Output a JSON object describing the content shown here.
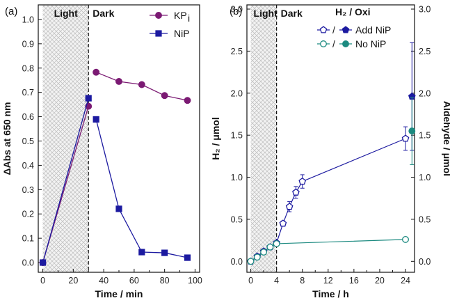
{
  "chart_data": [
    {
      "type": "line",
      "panel_label": "(a)",
      "xlabel": "Time / min",
      "ylabel": "ΔAbs at 650 nm",
      "xlim": [
        -3,
        103
      ],
      "ylim": [
        -0.04,
        1.06
      ],
      "xticks": [
        0,
        20,
        40,
        60,
        80,
        100
      ],
      "yticks": [
        0.0,
        0.1,
        0.2,
        0.3,
        0.4,
        0.5,
        0.6,
        0.7,
        0.8,
        0.9,
        1.0
      ],
      "region_labels": {
        "light": "Light",
        "dark": "Dark"
      },
      "light_region": [
        0,
        30
      ],
      "series": [
        {
          "name": "KPi",
          "legend_main": "KP",
          "legend_sub": "i",
          "color": "#7b1a73",
          "marker": "circle",
          "segments": [
            [
              [
                0,
                0.0
              ],
              [
                30,
                0.643
              ]
            ],
            [
              [
                35,
                0.783
              ],
              [
                50,
                0.745
              ],
              [
                65,
                0.732
              ],
              [
                80,
                0.687
              ],
              [
                95,
                0.667
              ]
            ]
          ]
        },
        {
          "name": "NiP",
          "color": "#1c1aa0",
          "marker": "square",
          "segments": [
            [
              [
                0,
                0.0
              ],
              [
                30,
                0.676
              ]
            ],
            [
              [
                35,
                0.589
              ],
              [
                50,
                0.221
              ],
              [
                65,
                0.043
              ],
              [
                80,
                0.04
              ],
              [
                95,
                0.02
              ]
            ]
          ]
        }
      ]
    },
    {
      "type": "line",
      "panel_label": "(b)",
      "title": "H₂ / Oxi",
      "xlabel": "Time / h",
      "ylabel": "H₂ / μmol",
      "ylabel_right": "Aldehyde / μmol",
      "xlim": [
        -0.6,
        25.4
      ],
      "ylim": [
        -0.13,
        3.05
      ],
      "xticks": [
        0,
        4,
        8,
        12,
        16,
        20,
        24
      ],
      "yticks": [
        0.0,
        0.5,
        1.0,
        1.5,
        2.0,
        2.5,
        3.0
      ],
      "region_labels": {
        "light": "Light",
        "dark": "Dark"
      },
      "light_region": [
        0,
        4
      ],
      "legend": [
        {
          "label": "Add NiP",
          "sep": "/",
          "color": "#1c1aa0",
          "marker": "pentagon"
        },
        {
          "label": "No NiP",
          "sep": "/",
          "color": "#1c8a80",
          "marker": "circle"
        }
      ],
      "series": [
        {
          "name": "H₂ Add NiP",
          "color": "#1c1aa0",
          "marker": "pentagon-open",
          "x": [
            0,
            1,
            2,
            3,
            4,
            5,
            6,
            7,
            8,
            24
          ],
          "y": [
            0.0,
            0.06,
            0.12,
            0.17,
            0.22,
            0.45,
            0.65,
            0.82,
            0.95,
            1.46
          ],
          "err": [
            0,
            0,
            0,
            0,
            0,
            0.03,
            0.06,
            0.07,
            0.08,
            0.14
          ]
        },
        {
          "name": "H₂ No NiP",
          "color": "#1c8a80",
          "marker": "circle-open",
          "x": [
            0,
            1,
            2,
            3,
            4,
            24
          ],
          "y": [
            0.0,
            0.05,
            0.11,
            0.17,
            0.21,
            0.26
          ],
          "err": [
            0,
            0,
            0,
            0,
            0,
            0
          ]
        },
        {
          "name": "Aldehyde Add NiP",
          "color": "#1c1aa0",
          "marker": "pentagon-filled",
          "x": [
            25
          ],
          "y": [
            1.96
          ],
          "err": [
            0.64
          ]
        },
        {
          "name": "Aldehyde No NiP",
          "color": "#1c8a80",
          "marker": "circle-filled",
          "x": [
            25
          ],
          "y": [
            1.55
          ],
          "err": [
            0.4
          ]
        }
      ]
    }
  ]
}
